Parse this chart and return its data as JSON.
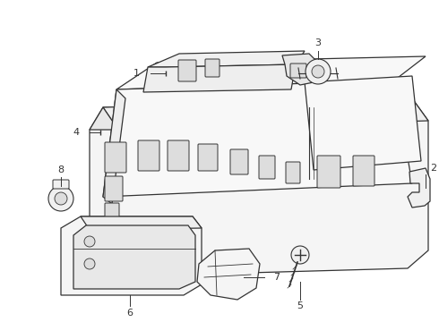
{
  "background_color": "#ffffff",
  "line_color": "#333333",
  "label_color": "#000000",
  "fig_width": 4.9,
  "fig_height": 3.6,
  "dpi": 100
}
